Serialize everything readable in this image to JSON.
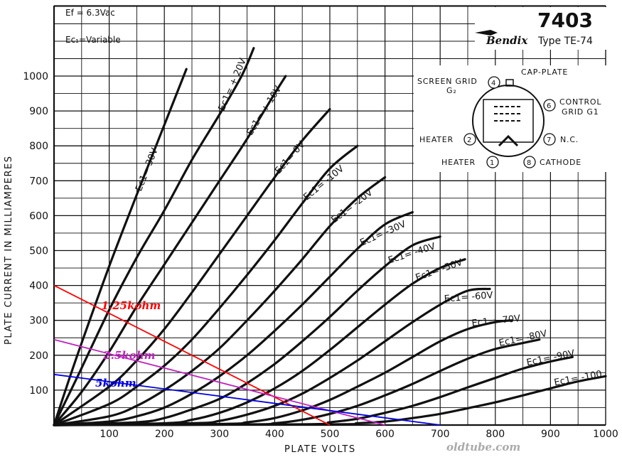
{
  "chart_data": {
    "type": "line",
    "title": "7403",
    "brand": "Bendix",
    "subtitle": "Type TE-74",
    "notes": [
      "Ef = 6.3Vac",
      "Ec₁=Variable"
    ],
    "xlabel": "PLATE VOLTS",
    "ylabel": "PLATE CURRENT IN MILLIAMPERES",
    "xlim": [
      0,
      1000
    ],
    "ylim": [
      0,
      1000
    ],
    "x_ticks": [
      100,
      200,
      300,
      400,
      500,
      600,
      700,
      800,
      900,
      1000
    ],
    "y_ticks": [
      100,
      200,
      300,
      400,
      500,
      600,
      700,
      800,
      900,
      1000
    ],
    "grid": true,
    "series": [
      {
        "name": "Ec1= +30V",
        "label_text": "Ec1= 30V",
        "points": [
          [
            0,
            0
          ],
          [
            25,
            120
          ],
          [
            50,
            235
          ],
          [
            100,
            455
          ],
          [
            150,
            660
          ],
          [
            200,
            860
          ],
          [
            240,
            1020
          ]
        ]
      },
      {
        "name": "Ec1= +20V",
        "label_text": "Ec1= + 20V",
        "points": [
          [
            0,
            0
          ],
          [
            40,
            130
          ],
          [
            100,
            330
          ],
          [
            150,
            480
          ],
          [
            200,
            615
          ],
          [
            250,
            760
          ],
          [
            300,
            890
          ],
          [
            340,
            1000
          ],
          [
            362,
            1080
          ]
        ]
      },
      {
        "name": "Ec1= +10V",
        "label_text": "Ec1= + 10V",
        "points": [
          [
            0,
            0
          ],
          [
            50,
            95
          ],
          [
            100,
            210
          ],
          [
            150,
            340
          ],
          [
            200,
            460
          ],
          [
            250,
            580
          ],
          [
            300,
            700
          ],
          [
            350,
            820
          ],
          [
            400,
            950
          ],
          [
            420,
            1000
          ]
        ]
      },
      {
        "name": "Ec1= 0V",
        "label_text": "Ec1= 0V",
        "points": [
          [
            0,
            0
          ],
          [
            100,
            110
          ],
          [
            150,
            185
          ],
          [
            200,
            275
          ],
          [
            250,
            380
          ],
          [
            300,
            490
          ],
          [
            350,
            600
          ],
          [
            400,
            710
          ],
          [
            450,
            815
          ],
          [
            500,
            905
          ]
        ]
      },
      {
        "name": "Ec1= -10V",
        "label_text": "Ec1= -10V",
        "points": [
          [
            0,
            0
          ],
          [
            100,
            60
          ],
          [
            150,
            110
          ],
          [
            200,
            170
          ],
          [
            250,
            245
          ],
          [
            300,
            335
          ],
          [
            350,
            430
          ],
          [
            400,
            530
          ],
          [
            450,
            635
          ],
          [
            500,
            735
          ],
          [
            550,
            800
          ]
        ]
      },
      {
        "name": "Ec1= -20V",
        "label_text": "Ec1= -20V",
        "points": [
          [
            0,
            0
          ],
          [
            100,
            25
          ],
          [
            150,
            55
          ],
          [
            200,
            100
          ],
          [
            250,
            155
          ],
          [
            300,
            220
          ],
          [
            350,
            300
          ],
          [
            400,
            385
          ],
          [
            450,
            475
          ],
          [
            500,
            570
          ],
          [
            550,
            650
          ],
          [
            600,
            710
          ]
        ]
      },
      {
        "name": "Ec1= -30V",
        "label_text": "Ec1= -30V",
        "points": [
          [
            0,
            0
          ],
          [
            100,
            10
          ],
          [
            150,
            25
          ],
          [
            200,
            50
          ],
          [
            250,
            90
          ],
          [
            300,
            140
          ],
          [
            350,
            200
          ],
          [
            400,
            270
          ],
          [
            450,
            345
          ],
          [
            500,
            425
          ],
          [
            550,
            505
          ],
          [
            600,
            575
          ],
          [
            650,
            610
          ]
        ]
      },
      {
        "name": "Ec1= -40V",
        "label_text": "Ec1= -40V",
        "points": [
          [
            0,
            0
          ],
          [
            150,
            8
          ],
          [
            200,
            20
          ],
          [
            250,
            45
          ],
          [
            300,
            75
          ],
          [
            350,
            120
          ],
          [
            400,
            175
          ],
          [
            450,
            240
          ],
          [
            500,
            310
          ],
          [
            550,
            385
          ],
          [
            600,
            455
          ],
          [
            650,
            515
          ],
          [
            700,
            540
          ]
        ]
      },
      {
        "name": "Ec1= -50V",
        "label_text": "Ec1= -50V",
        "points": [
          [
            0,
            0
          ],
          [
            200,
            5
          ],
          [
            250,
            15
          ],
          [
            300,
            35
          ],
          [
            350,
            65
          ],
          [
            400,
            105
          ],
          [
            450,
            155
          ],
          [
            500,
            215
          ],
          [
            550,
            280
          ],
          [
            600,
            345
          ],
          [
            650,
            405
          ],
          [
            700,
            450
          ],
          [
            745,
            475
          ]
        ]
      },
      {
        "name": "Ec1= -60V",
        "label_text": "Ec1= -60V",
        "points": [
          [
            0,
            0
          ],
          [
            250,
            5
          ],
          [
            300,
            12
          ],
          [
            350,
            30
          ],
          [
            400,
            55
          ],
          [
            450,
            90
          ],
          [
            500,
            135
          ],
          [
            550,
            185
          ],
          [
            600,
            240
          ],
          [
            650,
            295
          ],
          [
            700,
            345
          ],
          [
            750,
            385
          ],
          [
            790,
            390
          ]
        ]
      },
      {
        "name": "Ec1= -70V",
        "label_text": "Ec1= -70V",
        "points": [
          [
            0,
            0
          ],
          [
            300,
            3
          ],
          [
            350,
            8
          ],
          [
            400,
            20
          ],
          [
            450,
            42
          ],
          [
            500,
            72
          ],
          [
            550,
            110
          ],
          [
            600,
            150
          ],
          [
            650,
            195
          ],
          [
            700,
            240
          ],
          [
            750,
            275
          ],
          [
            800,
            295
          ],
          [
            830,
            300
          ]
        ]
      },
      {
        "name": "Ec1= -80V",
        "label_text": "Ec1= -80V",
        "points": [
          [
            0,
            0
          ],
          [
            350,
            2
          ],
          [
            400,
            5
          ],
          [
            450,
            15
          ],
          [
            500,
            32
          ],
          [
            550,
            55
          ],
          [
            600,
            85
          ],
          [
            650,
            118
          ],
          [
            700,
            155
          ],
          [
            750,
            190
          ],
          [
            800,
            218
          ],
          [
            850,
            235
          ],
          [
            880,
            245
          ]
        ]
      },
      {
        "name": "Ec1= -90V",
        "label_text": "Ec1= -90V",
        "points": [
          [
            0,
            0
          ],
          [
            450,
            2
          ],
          [
            500,
            8
          ],
          [
            550,
            18
          ],
          [
            600,
            35
          ],
          [
            650,
            55
          ],
          [
            700,
            80
          ],
          [
            750,
            108
          ],
          [
            800,
            135
          ],
          [
            850,
            162
          ],
          [
            900,
            182
          ],
          [
            940,
            195
          ]
        ]
      },
      {
        "name": "Ec1= -100V",
        "label_text": "Ec1= -100",
        "points": [
          [
            0,
            0
          ],
          [
            500,
            2
          ],
          [
            550,
            5
          ],
          [
            600,
            10
          ],
          [
            650,
            20
          ],
          [
            700,
            32
          ],
          [
            750,
            48
          ],
          [
            800,
            65
          ],
          [
            850,
            85
          ],
          [
            900,
            105
          ],
          [
            950,
            125
          ],
          [
            1000,
            140
          ]
        ]
      }
    ],
    "load_lines": [
      {
        "name": "1.25kohm",
        "color": "#ff0000",
        "points": [
          [
            0,
            400
          ],
          [
            500,
            0
          ]
        ]
      },
      {
        "name": "2.5kohm",
        "color": "#c020c0",
        "points": [
          [
            0,
            245
          ],
          [
            600,
            0
          ]
        ]
      },
      {
        "name": "5kohm",
        "color": "#0000e0",
        "points": [
          [
            0,
            145
          ],
          [
            700,
            0
          ]
        ]
      }
    ],
    "pin_diagram": {
      "labels": [
        "SCREEN GRID",
        "G₂",
        "CAP-PLATE",
        "CONTROL",
        "GRID G1",
        "HEATER",
        "N.C.",
        "HEATER",
        "CATHODE"
      ],
      "pins": [
        "4",
        "6",
        "2",
        "7",
        "1",
        "8"
      ]
    },
    "watermark": "oldtube.com"
  }
}
